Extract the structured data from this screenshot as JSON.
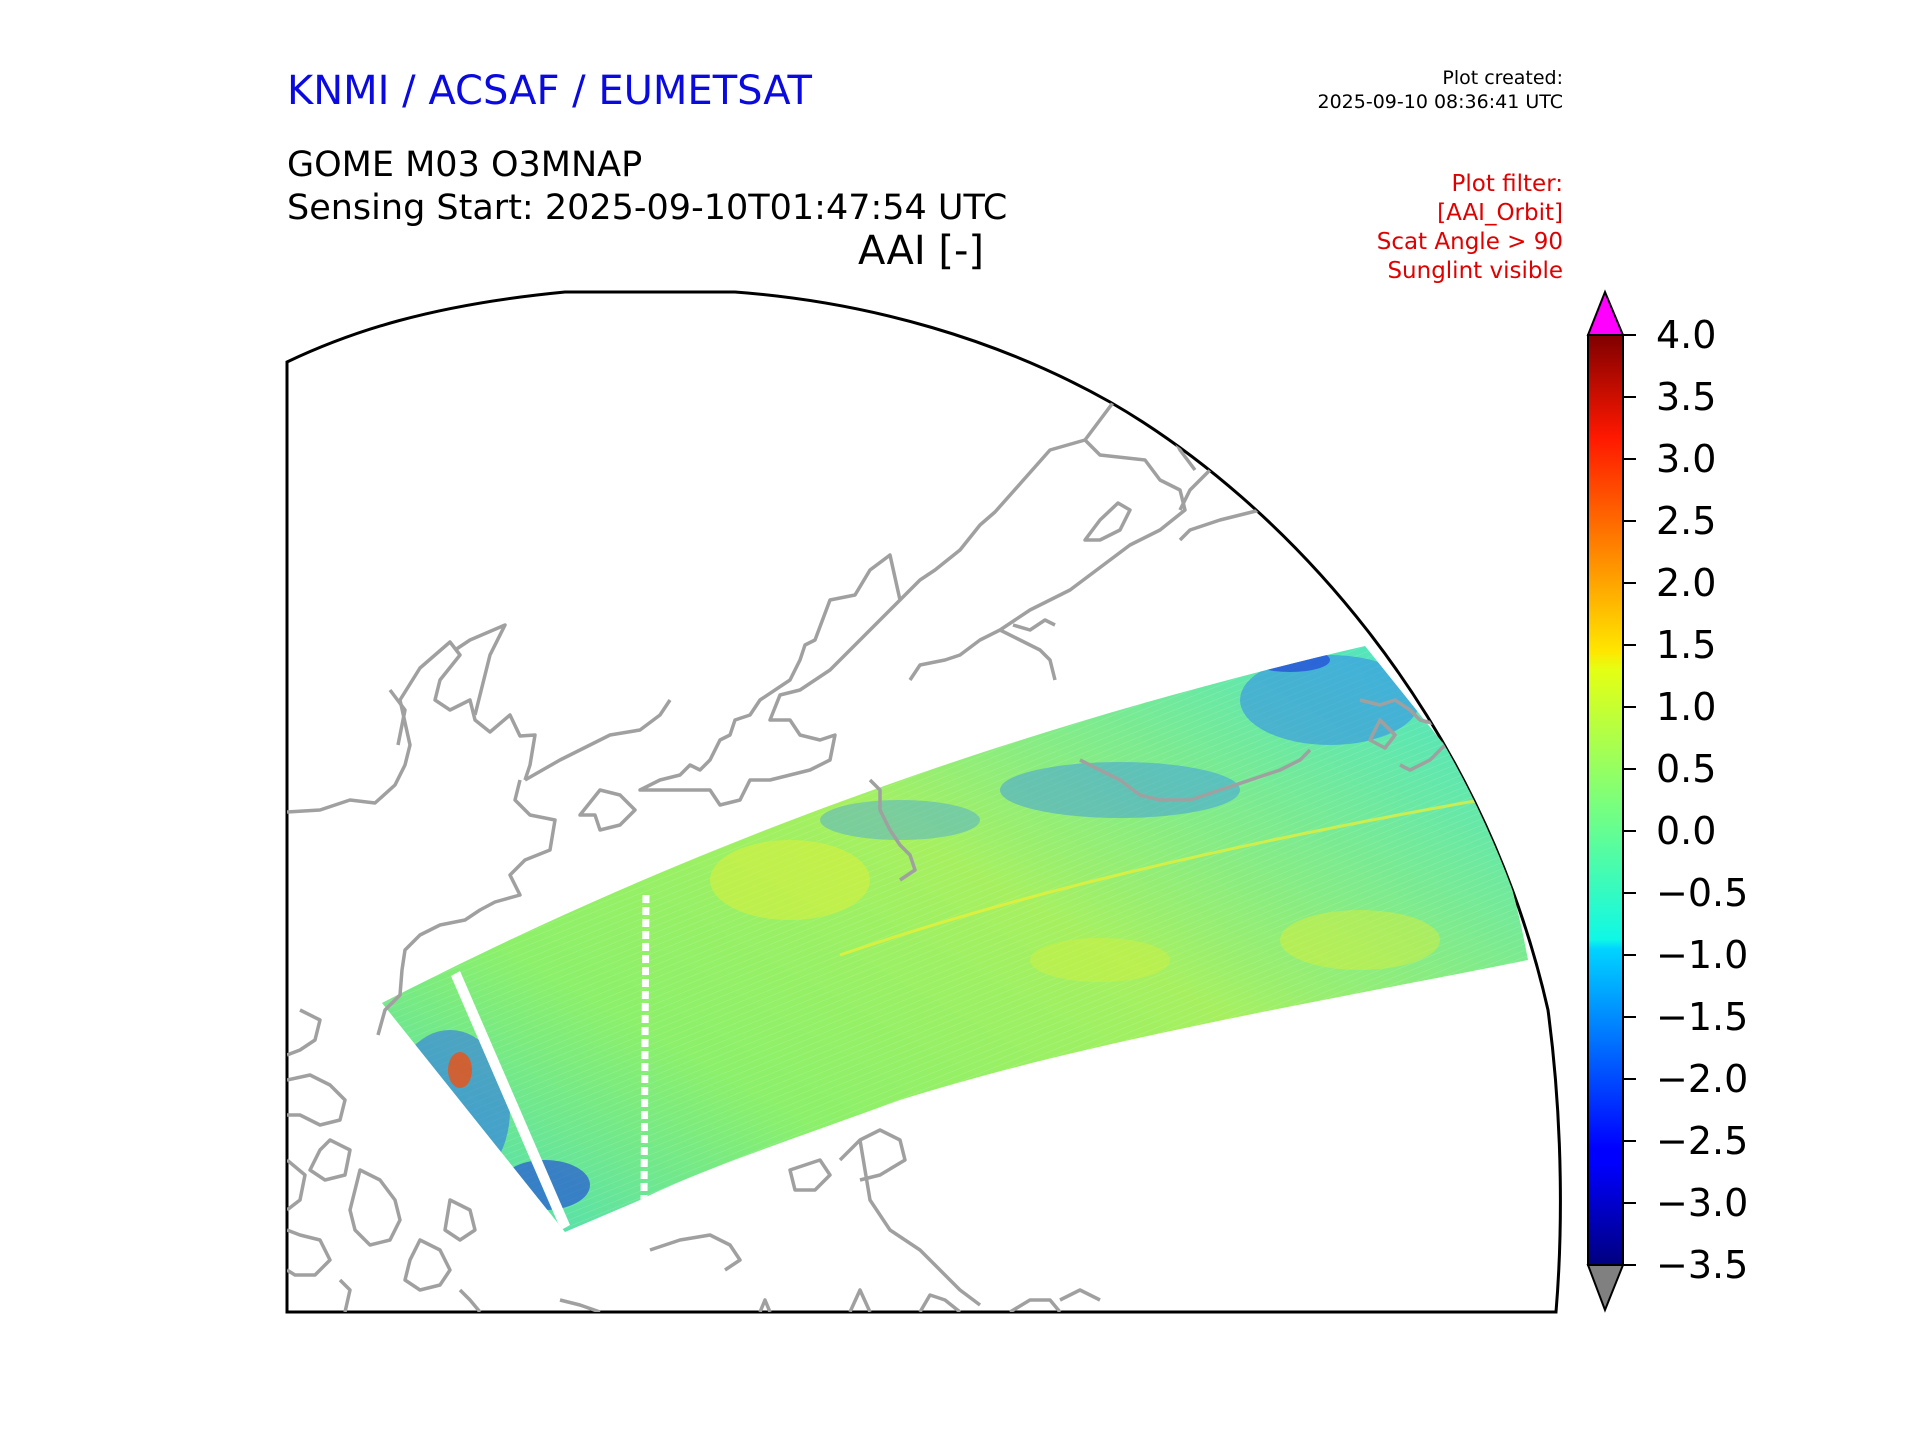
{
  "header": {
    "organization": "KNMI / ACSAF / EUMETSAT",
    "product": "GOME M03 O3MNAP",
    "sensing_start": "Sensing Start: 2025-09-10T01:47:54 UTC",
    "variable": "AAI [-]",
    "plot_created_label": "Plot created:",
    "plot_created_time": "2025-09-10 08:36:41 UTC"
  },
  "plot_filter": {
    "title": "Plot filter:",
    "lines": [
      "[AAI_Orbit]",
      "Scat Angle > 90",
      "Sunglint visible"
    ]
  },
  "colorbar": {
    "min": -3.5,
    "max": 4.0,
    "tick_labels": [
      "4.0",
      "3.5",
      "3.0",
      "2.5",
      "2.0",
      "1.5",
      "1.0",
      "0.5",
      "0.0",
      "−0.5",
      "−1.0",
      "−1.5",
      "−2.0",
      "−2.5",
      "−3.0",
      "−3.5"
    ],
    "tick_values": [
      4.0,
      3.5,
      3.0,
      2.5,
      2.0,
      1.5,
      1.0,
      0.5,
      0.0,
      -0.5,
      -1.0,
      -1.5,
      -2.0,
      -2.5,
      -3.0,
      -3.5
    ],
    "over_color": "#ff00ff",
    "under_color": "#808080",
    "colormap": "jet"
  },
  "map": {
    "coastline_color": "#a0a0a0",
    "frame_color": "#000000",
    "swath_dominant_range": [
      -1.0,
      1.5
    ]
  }
}
